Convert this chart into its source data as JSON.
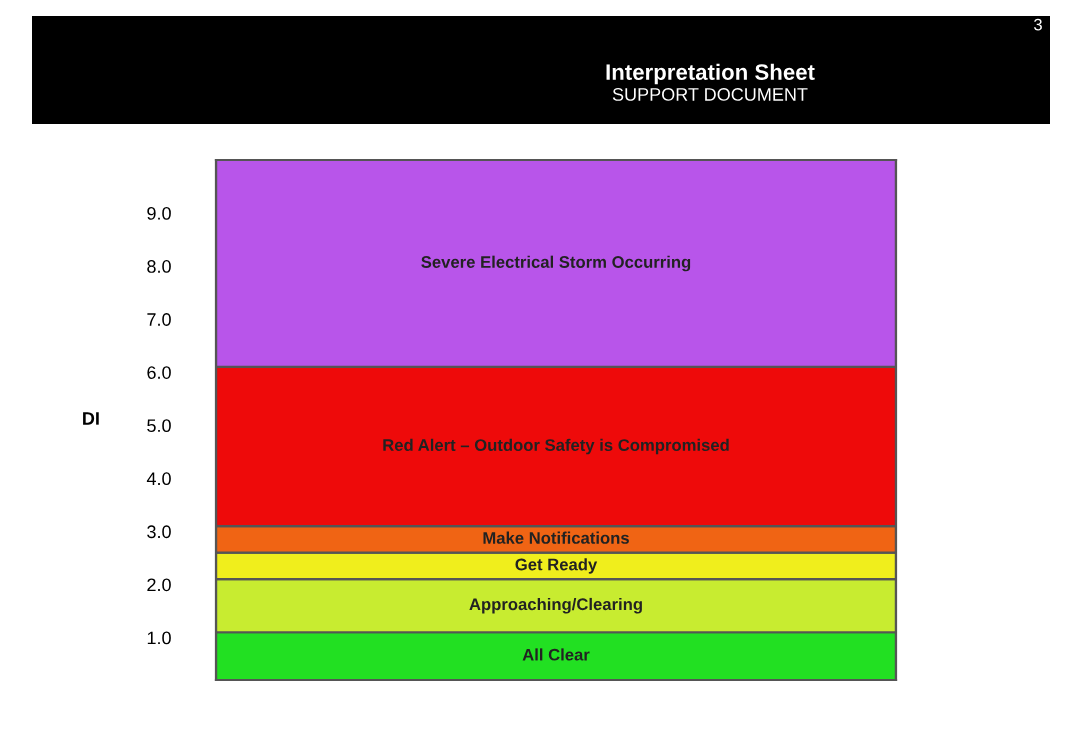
{
  "chart_data": {
    "type": "bar",
    "title": "Interpretation Sheet",
    "subtitle": "SUPPORT DOCUMENT",
    "ylabel": "DI",
    "annotations": [
      "3"
    ],
    "categories": [
      null
    ],
    "values": [
      null
    ],
    "ylim": [
      0.2,
      10.0
    ],
    "yticks": [
      {
        "value": 1,
        "label": "1.0"
      },
      {
        "value": 2,
        "label": "2.0"
      },
      {
        "value": 3,
        "label": "3.0"
      },
      {
        "value": 4,
        "label": "4.0"
      },
      {
        "value": 5,
        "label": "5.0"
      },
      {
        "value": 6,
        "label": "6.0"
      },
      {
        "value": 7,
        "label": "7.0"
      },
      {
        "value": 8,
        "label": "8.0"
      },
      {
        "value": 9,
        "label": "9.0"
      }
    ],
    "tick_labels": "y",
    "bands": [
      {
        "axis": "y",
        "from": 0.2,
        "to": 1.1,
        "label": "All Clear",
        "color": "#22e022"
      },
      {
        "axis": "y",
        "from": 1.1,
        "to": 2.1,
        "label": "Approaching/Clearing",
        "color": "#c8ec30"
      },
      {
        "axis": "y",
        "from": 2.1,
        "to": 2.6,
        "label": "Get Ready",
        "color": "#f0ee1c"
      },
      {
        "axis": "y",
        "from": 2.6,
        "to": 3.1,
        "label": "Make Notifications",
        "color": "#f06414"
      },
      {
        "axis": "y",
        "from": 3.1,
        "to": 6.1,
        "label": "Red Alert – Outdoor Safety is Compromised",
        "color": "#ee0a0a"
      },
      {
        "axis": "y",
        "from": 6.1,
        "to": 10.0,
        "label": "Severe Electrical Storm Occurring",
        "color": "#b855ea"
      }
    ]
  }
}
